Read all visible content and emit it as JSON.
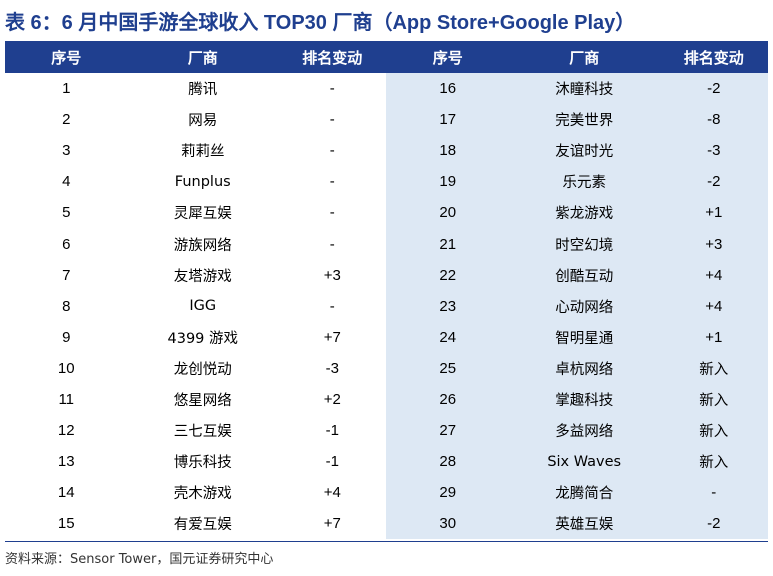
{
  "title": "表 6：6 月中国手游全球收入 TOP30 厂商（App Store+Google Play）",
  "headers": [
    "序号",
    "厂商",
    "排名变动",
    "序号",
    "厂商",
    "排名变动"
  ],
  "rows": [
    {
      "l_rank": "1",
      "l_name": "腾讯",
      "l_chg": "-",
      "r_rank": "16",
      "r_name": "沐瞳科技",
      "r_chg": "-2"
    },
    {
      "l_rank": "2",
      "l_name": "网易",
      "l_chg": "-",
      "r_rank": "17",
      "r_name": "完美世界",
      "r_chg": "-8"
    },
    {
      "l_rank": "3",
      "l_name": "莉莉丝",
      "l_chg": "-",
      "r_rank": "18",
      "r_name": "友谊时光",
      "r_chg": "-3"
    },
    {
      "l_rank": "4",
      "l_name": "Funplus",
      "l_chg": "-",
      "r_rank": "19",
      "r_name": "乐元素",
      "r_chg": "-2"
    },
    {
      "l_rank": "5",
      "l_name": "灵犀互娱",
      "l_chg": "-",
      "r_rank": "20",
      "r_name": "紫龙游戏",
      "r_chg": "+1"
    },
    {
      "l_rank": "6",
      "l_name": "游族网络",
      "l_chg": "-",
      "r_rank": "21",
      "r_name": "时空幻境",
      "r_chg": "+3"
    },
    {
      "l_rank": "7",
      "l_name": "友塔游戏",
      "l_chg": "+3",
      "r_rank": "22",
      "r_name": "创酷互动",
      "r_chg": "+4"
    },
    {
      "l_rank": "8",
      "l_name": "IGG",
      "l_chg": "-",
      "r_rank": "23",
      "r_name": "心动网络",
      "r_chg": "+4"
    },
    {
      "l_rank": "9",
      "l_name": "4399 游戏",
      "l_chg": "+7",
      "r_rank": "24",
      "r_name": "智明星通",
      "r_chg": "+1"
    },
    {
      "l_rank": "10",
      "l_name": "龙创悦动",
      "l_chg": "-3",
      "r_rank": "25",
      "r_name": "卓杭网络",
      "r_chg": "新入"
    },
    {
      "l_rank": "11",
      "l_name": "悠星网络",
      "l_chg": "+2",
      "r_rank": "26",
      "r_name": "掌趣科技",
      "r_chg": "新入"
    },
    {
      "l_rank": "12",
      "l_name": "三七互娱",
      "l_chg": "-1",
      "r_rank": "27",
      "r_name": "多益网络",
      "r_chg": "新入"
    },
    {
      "l_rank": "13",
      "l_name": "博乐科技",
      "l_chg": "-1",
      "r_rank": "28",
      "r_name": "Six Waves",
      "r_chg": "新入"
    },
    {
      "l_rank": "14",
      "l_name": "壳木游戏",
      "l_chg": "+4",
      "r_rank": "29",
      "r_name": "龙腾简合",
      "r_chg": "-"
    },
    {
      "l_rank": "15",
      "l_name": "有爱互娱",
      "l_chg": "+7",
      "r_rank": "30",
      "r_name": "英雄互娱",
      "r_chg": "-2"
    }
  ],
  "source": "资料来源：Sensor Tower，国元证券研究中心",
  "colors": {
    "header_bg": "#1f3f8f",
    "right_bg": "#dde8f4",
    "title": "#1f3f8f"
  }
}
